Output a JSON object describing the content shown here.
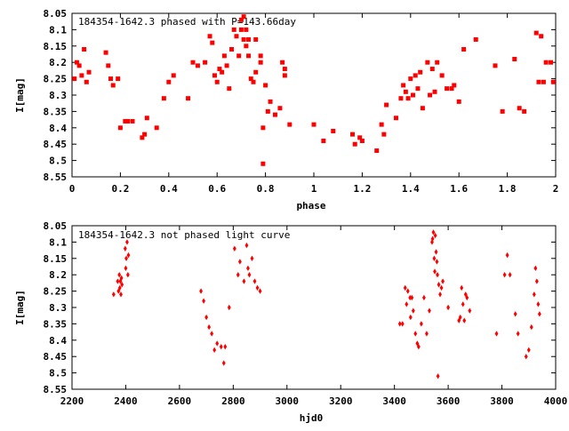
{
  "charts": [
    {
      "title": "184354-1642.3 phased with P=143.66day",
      "xlabel": "phase",
      "ylabel": "I[mag]"
    },
    {
      "title": "184354-1642.3 not phased light curve",
      "xlabel": "hjd0",
      "ylabel": "I[mag]"
    }
  ],
  "chart_data": [
    {
      "type": "scatter",
      "title": "184354-1642.3 phased with P=143.66day",
      "xlabel": "phase",
      "ylabel": "I[mag]",
      "xlim": [
        0,
        2
      ],
      "ylim": [
        8.55,
        8.05
      ],
      "y_inverted": true,
      "xticks": [
        "0",
        "0.2",
        "0.4",
        "0.6",
        "0.8",
        "1",
        "1.2",
        "1.4",
        "1.6",
        "1.8",
        "2"
      ],
      "yticks": [
        "8.05",
        "8.1",
        "8.15",
        "8.2",
        "8.25",
        "8.3",
        "8.35",
        "8.4",
        "8.45",
        "8.5",
        "8.55"
      ],
      "marker_color": "#ff0000",
      "grid": false,
      "x": [
        0.01,
        0.02,
        0.03,
        0.04,
        0.05,
        0.06,
        0.07,
        0.14,
        0.15,
        0.16,
        0.17,
        0.19,
        0.2,
        0.22,
        0.23,
        0.25,
        0.29,
        0.3,
        0.31,
        0.35,
        0.38,
        0.4,
        0.42,
        0.48,
        0.5,
        0.52,
        0.55,
        0.57,
        0.58,
        0.59,
        0.6,
        0.61,
        0.62,
        0.63,
        0.64,
        0.65,
        0.66,
        0.67,
        0.68,
        0.69,
        0.7,
        0.7,
        0.71,
        0.71,
        0.72,
        0.72,
        0.73,
        0.73,
        0.74,
        0.75,
        0.76,
        0.76,
        0.78,
        0.78,
        0.79,
        0.79,
        0.8,
        0.81,
        0.82,
        0.84,
        0.86,
        0.87,
        0.88,
        0.88,
        0.9,
        1.0,
        1.04,
        1.08,
        1.16,
        1.17,
        1.19,
        1.2,
        1.26,
        1.28,
        1.29,
        1.3,
        1.34,
        1.36,
        1.37,
        1.38,
        1.39,
        1.4,
        1.41,
        1.42,
        1.43,
        1.44,
        1.45,
        1.47,
        1.48,
        1.49,
        1.5,
        1.51,
        1.53,
        1.55,
        1.57,
        1.58,
        1.6,
        1.62,
        1.67,
        1.75,
        1.78,
        1.83,
        1.85,
        1.87,
        1.92,
        1.93,
        1.94,
        1.95,
        1.96,
        1.98,
        1.99
      ],
      "y": [
        8.25,
        8.2,
        8.21,
        8.24,
        8.16,
        8.26,
        8.23,
        8.17,
        8.21,
        8.25,
        8.27,
        8.25,
        8.4,
        8.38,
        8.38,
        8.38,
        8.43,
        8.42,
        8.37,
        8.4,
        8.31,
        8.26,
        8.24,
        8.31,
        8.2,
        8.21,
        8.2,
        8.12,
        8.14,
        8.24,
        8.26,
        8.22,
        8.23,
        8.18,
        8.21,
        8.28,
        8.16,
        8.1,
        8.12,
        8.18,
        8.07,
        8.1,
        8.13,
        8.06,
        8.15,
        8.1,
        8.18,
        8.13,
        8.25,
        8.26,
        8.23,
        8.13,
        8.2,
        8.18,
        8.4,
        8.51,
        8.27,
        8.35,
        8.32,
        8.36,
        8.34,
        8.2,
        8.22,
        8.24,
        8.39,
        8.39,
        8.44,
        8.41,
        8.42,
        8.45,
        8.43,
        8.44,
        8.47,
        8.39,
        8.42,
        8.33,
        8.37,
        8.31,
        8.27,
        8.29,
        8.31,
        8.25,
        8.3,
        8.24,
        8.28,
        8.23,
        8.34,
        8.2,
        8.3,
        8.22,
        8.29,
        8.2,
        8.24,
        8.28,
        8.28,
        8.27,
        8.32,
        8.16,
        8.13,
        8.21,
        8.35,
        8.19,
        8.34,
        8.35,
        8.11,
        8.26,
        8.12,
        8.26,
        8.2,
        8.2,
        8.26
      ]
    },
    {
      "type": "scatter",
      "title": "184354-1642.3 not phased light curve",
      "xlabel": "hjd0",
      "ylabel": "I[mag]",
      "xlim": [
        2200,
        4000
      ],
      "ylim": [
        8.55,
        8.05
      ],
      "y_inverted": true,
      "xticks": [
        "2200",
        "2400",
        "2600",
        "2800",
        "3000",
        "3200",
        "3400",
        "3600",
        "3800",
        "4000"
      ],
      "yticks": [
        "8.05",
        "8.1",
        "8.15",
        "8.2",
        "8.25",
        "8.3",
        "8.35",
        "8.4",
        "8.45",
        "8.5",
        "8.55"
      ],
      "marker_color": "#ff0000",
      "grid": false,
      "x": [
        2355,
        2370,
        2373,
        2376,
        2378,
        2380,
        2382,
        2384,
        2386,
        2398,
        2400,
        2402,
        2405,
        2408,
        2410,
        2680,
        2690,
        2700,
        2710,
        2720,
        2730,
        2740,
        2755,
        2765,
        2770,
        2785,
        2805,
        2818,
        2825,
        2840,
        2850,
        2855,
        2860,
        2870,
        2880,
        2890,
        2900,
        3420,
        3430,
        3440,
        3445,
        3450,
        3458,
        3460,
        3465,
        3470,
        3478,
        3485,
        3490,
        3500,
        3510,
        3520,
        3530,
        3540,
        3542,
        3545,
        3548,
        3550,
        3552,
        3555,
        3558,
        3560,
        3562,
        3565,
        3570,
        3575,
        3580,
        3600,
        3640,
        3645,
        3650,
        3655,
        3660,
        3665,
        3670,
        3680,
        3780,
        3810,
        3820,
        3830,
        3850,
        3860,
        3890,
        3900,
        3910,
        3920,
        3925,
        3930,
        3935,
        3940
      ],
      "y": [
        8.26,
        8.22,
        8.25,
        8.2,
        8.24,
        8.22,
        8.26,
        8.21,
        8.23,
        8.12,
        8.18,
        8.15,
        8.1,
        8.2,
        8.14,
        8.25,
        8.28,
        8.33,
        8.36,
        8.38,
        8.43,
        8.41,
        8.42,
        8.47,
        8.42,
        8.3,
        8.12,
        8.2,
        8.16,
        8.22,
        8.11,
        8.18,
        8.2,
        8.15,
        8.22,
        8.24,
        8.25,
        8.35,
        8.35,
        8.24,
        8.29,
        8.25,
        8.27,
        8.33,
        8.27,
        8.31,
        8.38,
        8.41,
        8.42,
        8.35,
        8.27,
        8.38,
        8.31,
        8.1,
        8.09,
        8.07,
        8.15,
        8.19,
        8.08,
        8.13,
        8.16,
        8.2,
        8.51,
        8.23,
        8.26,
        8.24,
        8.22,
        8.3,
        8.34,
        8.33,
        8.24,
        8.29,
        8.34,
        8.26,
        8.27,
        8.31,
        8.38,
        8.2,
        8.14,
        8.2,
        8.32,
        8.38,
        8.45,
        8.43,
        8.36,
        8.26,
        8.18,
        8.22,
        8.29,
        8.32
      ]
    }
  ]
}
